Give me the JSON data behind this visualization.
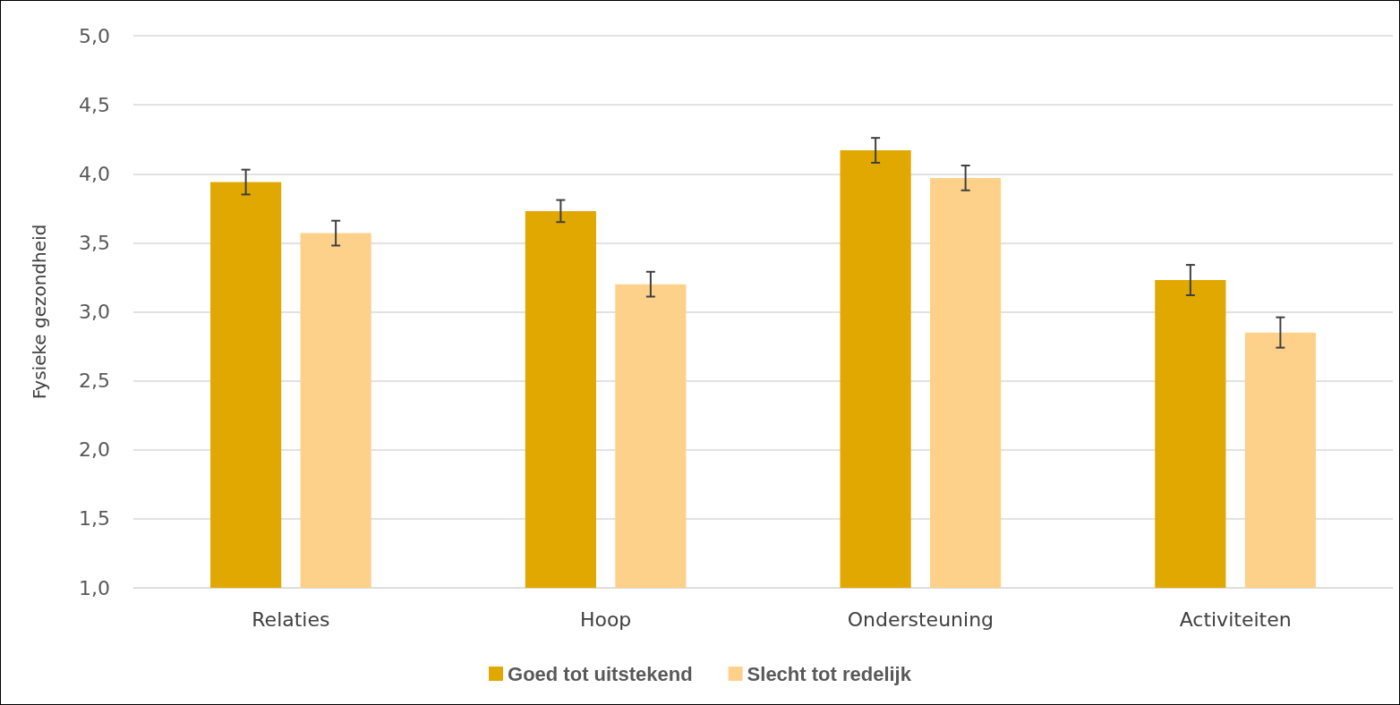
{
  "chart_data": {
    "type": "bar",
    "ylabel": "Fysieke gezondheid",
    "categories": [
      "Relaties",
      "Hoop",
      "Ondersteuning",
      "Activiteiten"
    ],
    "series": [
      {
        "name": "Goed tot uitstekend",
        "color": "#e0a800",
        "values": [
          3.94,
          3.73,
          4.17,
          3.23
        ],
        "errors": [
          0.09,
          0.08,
          0.09,
          0.11
        ]
      },
      {
        "name": "Slecht tot redelijk",
        "color": "#fdd189",
        "values": [
          3.57,
          3.2,
          3.97,
          2.85
        ],
        "errors": [
          0.09,
          0.09,
          0.09,
          0.11
        ]
      }
    ],
    "ylim": [
      1,
      5
    ],
    "yticks": [
      {
        "value": 1,
        "label": "1,0"
      },
      {
        "value": 1.5,
        "label": "1,5"
      },
      {
        "value": 2,
        "label": "2,0"
      },
      {
        "value": 2.5,
        "label": "2,5"
      },
      {
        "value": 3,
        "label": "3,0"
      },
      {
        "value": 3.5,
        "label": "3,5"
      },
      {
        "value": 4,
        "label": "4,0"
      },
      {
        "value": 4.5,
        "label": "4,5"
      },
      {
        "value": 5,
        "label": "5,0"
      }
    ],
    "grid": "y",
    "legend": "bottom"
  }
}
